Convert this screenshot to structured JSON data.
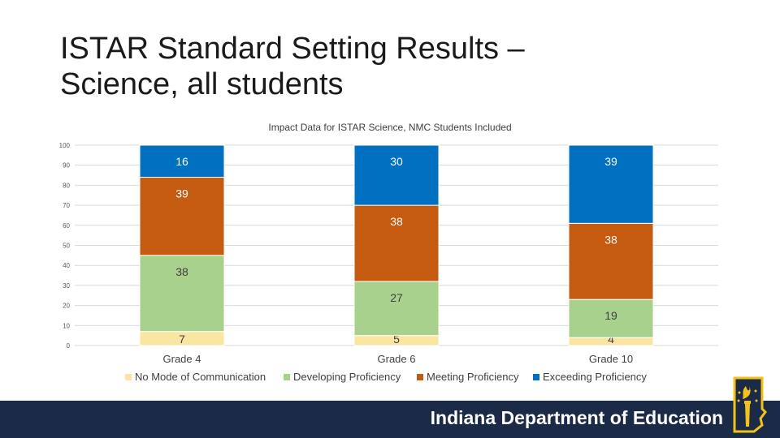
{
  "slide": {
    "title_line1": "ISTAR Standard Setting Results –",
    "title_line2": "Science, all students"
  },
  "footer": {
    "org_name": "Indiana Department of Education",
    "logo_icon": "indiana-torch-logo-icon",
    "background": "#1b2a47"
  },
  "chart_data": {
    "type": "bar",
    "stacked": true,
    "title": "Impact Data for ISTAR Science, NMC Students Included",
    "categories": [
      "Grade 4",
      "Grade 6",
      "Grade 10"
    ],
    "ylim": [
      0,
      100
    ],
    "yticks": [
      0,
      10,
      20,
      30,
      40,
      50,
      60,
      70,
      80,
      90,
      100
    ],
    "grid": true,
    "legend": "bottom",
    "series": [
      {
        "name": "No Mode of Communication",
        "color": "#fbe5a3",
        "values": [
          7,
          5,
          4
        ]
      },
      {
        "name": "Developing Proficiency",
        "color": "#a9d18e",
        "values": [
          38,
          27,
          19
        ]
      },
      {
        "name": "Meeting Proficiency",
        "color": "#c55a11",
        "values": [
          39,
          38,
          38
        ]
      },
      {
        "name": "Exceeding Proficiency",
        "color": "#0070c0",
        "values": [
          16,
          30,
          39
        ]
      }
    ]
  }
}
